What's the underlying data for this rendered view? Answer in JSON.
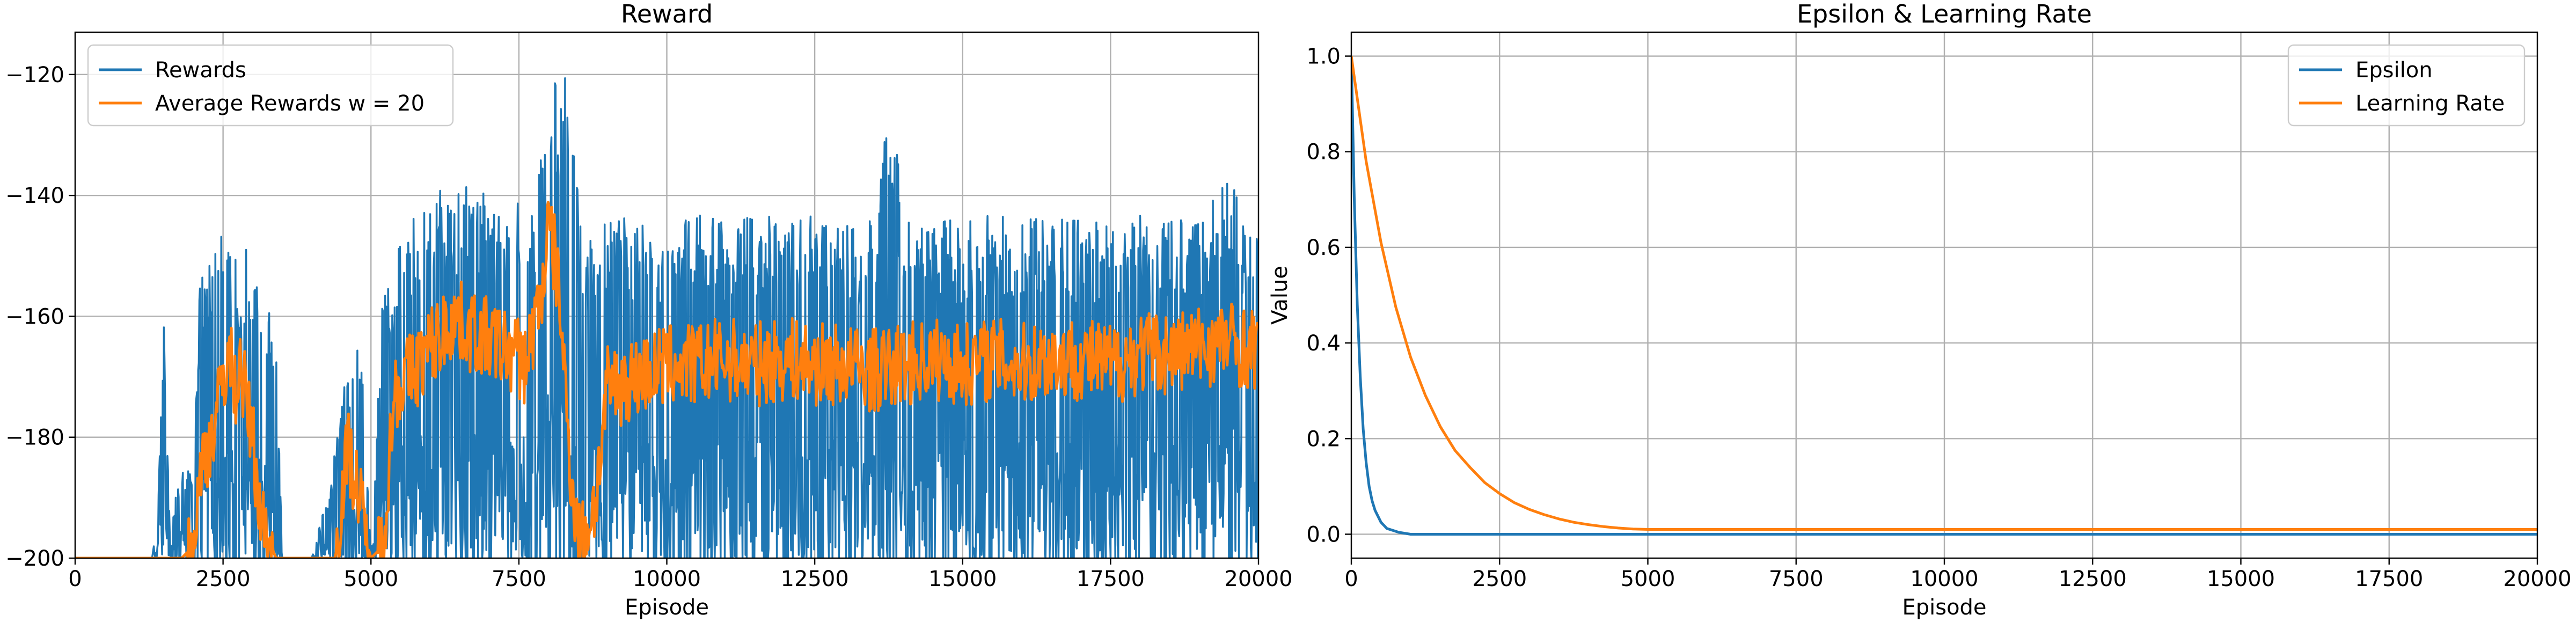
{
  "chart_data": [
    {
      "type": "line",
      "title": "Reward",
      "xlabel": "Episode",
      "ylabel": "",
      "xlim": [
        0,
        20000
      ],
      "ylim": [
        -200,
        -113
      ],
      "xticks": [
        0,
        2500,
        5000,
        7500,
        10000,
        12500,
        15000,
        17500,
        20000
      ],
      "yticks": [
        -200,
        -180,
        -160,
        -140,
        -120
      ],
      "grid": true,
      "legend_position": "top-left",
      "series": [
        {
          "name": "Rewards",
          "color": "#1f77b4",
          "x": [
            0,
            1300,
            1400,
            1500,
            1600,
            1800,
            2000,
            2100,
            2200,
            2300,
            2400,
            2500,
            2600,
            2700,
            2800,
            2900,
            3000,
            3100,
            3200,
            3300,
            3400,
            3500,
            3600,
            4000,
            4300,
            4500,
            4600,
            4700,
            4800,
            4900,
            5000,
            5200,
            5400,
            5600,
            5800,
            6000,
            6200,
            6400,
            6600,
            6800,
            7000,
            7200,
            7400,
            7600,
            7800,
            8000,
            8100,
            8200,
            8300,
            8400,
            8500,
            8600,
            8800,
            9000,
            9500,
            10000,
            10500,
            11000,
            11500,
            12000,
            12500,
            13000,
            13500,
            13800,
            14000,
            14500,
            15000,
            15500,
            16000,
            16500,
            17000,
            17500,
            18000,
            18500,
            19000,
            19500,
            19800,
            20000
          ],
          "upper": [
            -200,
            -200,
            -192,
            -158,
            -195,
            -185,
            -185,
            -155,
            -150,
            -148,
            -150,
            -141,
            -150,
            -145,
            -155,
            -148,
            -157,
            -151,
            -155,
            -160,
            -160,
            -200,
            -200,
            -200,
            -188,
            -175,
            -168,
            -166,
            -165,
            -175,
            -200,
            -155,
            -150,
            -145,
            -142,
            -140,
            -139,
            -138,
            -138,
            -140,
            -139,
            -141,
            -140,
            -142,
            -140,
            -120,
            -117,
            -118,
            -120,
            -127,
            -140,
            -150,
            -145,
            -144,
            -143,
            -144,
            -143,
            -144,
            -143,
            -144,
            -143,
            -145,
            -144,
            -122,
            -143,
            -144,
            -144,
            -143,
            -144,
            -143,
            -144,
            -144,
            -143,
            -144,
            -143,
            -134,
            -144,
            -147
          ],
          "lower": [
            -200,
            -200,
            -200,
            -200,
            -200,
            -200,
            -200,
            -200,
            -200,
            -200,
            -200,
            -200,
            -200,
            -200,
            -200,
            -200,
            -200,
            -200,
            -200,
            -200,
            -200,
            -200,
            -200,
            -200,
            -200,
            -200,
            -200,
            -200,
            -200,
            -200,
            -200,
            -200,
            -200,
            -200,
            -200,
            -200,
            -200,
            -200,
            -200,
            -200,
            -200,
            -200,
            -200,
            -200,
            -200,
            -200,
            -200,
            -200,
            -200,
            -200,
            -200,
            -200,
            -200,
            -200,
            -200,
            -200,
            -200,
            -200,
            -200,
            -200,
            -200,
            -200,
            -200,
            -200,
            -200,
            -200,
            -200,
            -200,
            -200,
            -200,
            -200,
            -200,
            -200,
            -200,
            -200,
            -200,
            -200,
            -200
          ]
        },
        {
          "name": "Average Rewards w = 20",
          "color": "#ff7f0e",
          "x": [
            0,
            1800,
            2000,
            2100,
            2200,
            2300,
            2400,
            2500,
            2600,
            2700,
            2800,
            2900,
            3000,
            3100,
            3200,
            3300,
            3400,
            3500,
            3600,
            4000,
            4400,
            4500,
            4600,
            4700,
            4800,
            4900,
            5000,
            5200,
            5400,
            5600,
            5800,
            6000,
            6200,
            6400,
            6600,
            6800,
            7000,
            7200,
            7400,
            7600,
            7800,
            7900,
            8000,
            8100,
            8200,
            8300,
            8400,
            8500,
            8600,
            8800,
            9000,
            9500,
            10000,
            10500,
            11000,
            11500,
            12000,
            12500,
            13000,
            13500,
            14000,
            14500,
            15000,
            15500,
            16000,
            16500,
            17000,
            17500,
            18000,
            18500,
            19000,
            19500,
            20000
          ],
          "y": [
            -200,
            -200,
            -198,
            -188,
            -182,
            -180,
            -176,
            -170,
            -166,
            -172,
            -168,
            -175,
            -180,
            -190,
            -196,
            -198,
            -200,
            -200,
            -200,
            -200,
            -200,
            -190,
            -182,
            -185,
            -190,
            -196,
            -200,
            -198,
            -172,
            -170,
            -168,
            -165,
            -163,
            -160,
            -162,
            -163,
            -164,
            -165,
            -166,
            -168,
            -160,
            -155,
            -145,
            -150,
            -158,
            -175,
            -188,
            -196,
            -197,
            -190,
            -172,
            -170,
            -168,
            -168,
            -167,
            -168,
            -167,
            -168,
            -168,
            -169,
            -168,
            -167,
            -168,
            -167,
            -168,
            -167,
            -167,
            -168,
            -166,
            -166,
            -165,
            -164,
            -166
          ]
        }
      ]
    },
    {
      "type": "line",
      "title": "Epsilon & Learning Rate",
      "xlabel": "Episode",
      "ylabel": "Value",
      "xlim": [
        0,
        20000
      ],
      "ylim": [
        -0.05,
        1.05
      ],
      "xticks": [
        0,
        2500,
        5000,
        7500,
        10000,
        12500,
        15000,
        17500,
        20000
      ],
      "yticks": [
        0.0,
        0.2,
        0.4,
        0.6,
        0.8,
        1.0
      ],
      "grid": true,
      "legend_position": "top-right",
      "series": [
        {
          "name": "Epsilon",
          "color": "#1f77b4",
          "x": [
            0,
            50,
            100,
            150,
            200,
            250,
            300,
            350,
            400,
            500,
            600,
            800,
            1000,
            2000,
            5000,
            10000,
            15000,
            20000
          ],
          "y": [
            1.0,
            0.7,
            0.48,
            0.33,
            0.22,
            0.15,
            0.1,
            0.07,
            0.05,
            0.025,
            0.012,
            0.004,
            0.0,
            0.0,
            0.0,
            0.0,
            0.0,
            0.0
          ]
        },
        {
          "name": "Learning Rate",
          "color": "#ff7f0e",
          "x": [
            0,
            250,
            500,
            750,
            1000,
            1250,
            1500,
            1750,
            2000,
            2250,
            2500,
            2750,
            3000,
            3250,
            3500,
            3750,
            4000,
            4250,
            4500,
            4750,
            5000,
            7500,
            10000,
            12500,
            15000,
            17500,
            20000
          ],
          "y": [
            1.0,
            0.78,
            0.61,
            0.475,
            0.37,
            0.29,
            0.225,
            0.175,
            0.14,
            0.108,
            0.085,
            0.066,
            0.052,
            0.041,
            0.032,
            0.025,
            0.02,
            0.016,
            0.013,
            0.011,
            0.01,
            0.01,
            0.01,
            0.01,
            0.01,
            0.01,
            0.01
          ]
        }
      ]
    }
  ]
}
